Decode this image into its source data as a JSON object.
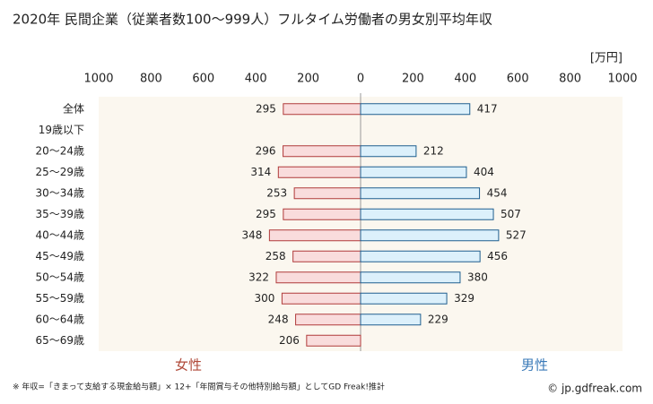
{
  "chart_data": {
    "type": "butterfly",
    "title": "2020年 民間企業（従業者数100～999人）フルタイム労働者の男女別平均年収",
    "unit": "[万円]",
    "categories": [
      "全体",
      "19歳以下",
      "20～24歳",
      "25～29歳",
      "30～34歳",
      "35～39歳",
      "40～44歳",
      "45～49歳",
      "50～54歳",
      "55～59歳",
      "60～64歳",
      "65～69歳"
    ],
    "series": [
      {
        "name": "女性",
        "color": "#f9dcdc",
        "values": [
          295,
          null,
          296,
          314,
          253,
          295,
          348,
          258,
          322,
          300,
          248,
          206
        ]
      },
      {
        "name": "男性",
        "color": "#dcf0fb",
        "values": [
          417,
          null,
          212,
          404,
          454,
          507,
          527,
          456,
          380,
          329,
          229,
          null
        ]
      }
    ],
    "xlim": [
      0,
      1000
    ],
    "xticks": [
      0,
      200,
      400,
      600,
      800,
      1000
    ],
    "note": "※ 年収=「きまって支給する現金給与額」× 12+「年間賞与その他特別給与額」としてGD Freak!推計",
    "credit": "© jp.gdfreak.com"
  }
}
